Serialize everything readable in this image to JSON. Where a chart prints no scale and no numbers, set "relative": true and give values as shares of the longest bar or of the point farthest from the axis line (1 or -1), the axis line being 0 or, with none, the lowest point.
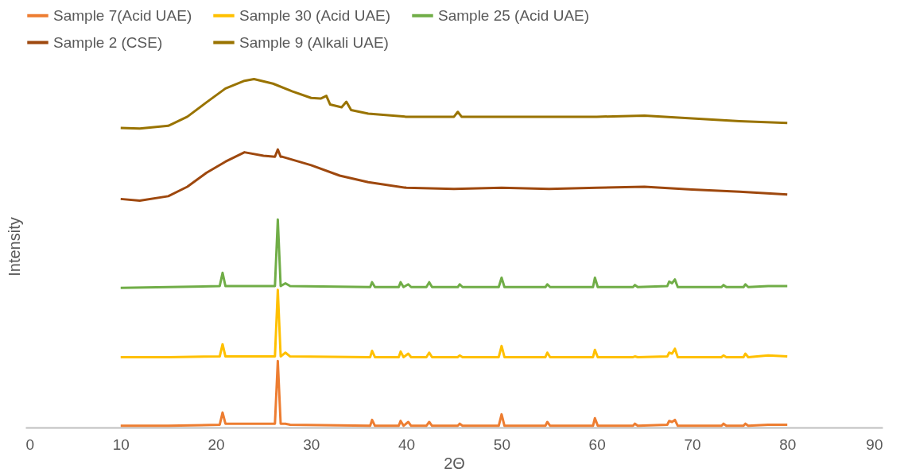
{
  "chart_data": {
    "type": "line",
    "xlabel": "2Θ",
    "ylabel": "Intensity",
    "relative": true,
    "xlim": [
      0,
      90
    ],
    "xticks": [
      0,
      10,
      20,
      30,
      40,
      50,
      60,
      70,
      80,
      90
    ],
    "grid": false,
    "legend": "top",
    "marker": "none",
    "line_style": "solid",
    "series": [
      {
        "name": "Sample 7(Acid UAE)",
        "color": "#ed7d31",
        "x": [
          10,
          15,
          20.4,
          20.7,
          21.0,
          24,
          26.2,
          26.5,
          26.8,
          27.3,
          27.8,
          36.2,
          36.4,
          36.7,
          39.2,
          39.4,
          39.7,
          40.2,
          40.5,
          42.1,
          42.4,
          42.7,
          45.4,
          45.6,
          45.9,
          49.7,
          50.0,
          50.3,
          54.6,
          54.8,
          55.1,
          59.6,
          59.8,
          60.1,
          63.8,
          64.0,
          64.3,
          67.4,
          67.6,
          67.9,
          68.2,
          68.5,
          73.1,
          73.3,
          73.6,
          75.4,
          75.6,
          75.9,
          78.0,
          80
        ],
        "values": [
          0.005,
          0.005,
          0.008,
          0.043,
          0.011,
          0.011,
          0.011,
          0.191,
          0.011,
          0.011,
          0.008,
          0.005,
          0.022,
          0.005,
          0.005,
          0.019,
          0.005,
          0.016,
          0.005,
          0.005,
          0.016,
          0.005,
          0.005,
          0.011,
          0.005,
          0.005,
          0.038,
          0.005,
          0.005,
          0.016,
          0.005,
          0.005,
          0.027,
          0.005,
          0.005,
          0.011,
          0.005,
          0.008,
          0.019,
          0.016,
          0.022,
          0.005,
          0.005,
          0.011,
          0.005,
          0.005,
          0.011,
          0.005,
          0.008,
          0.008
        ]
      },
      {
        "name": "Sample 30 (Acid UAE)",
        "color": "#ffc000",
        "x": [
          10,
          15,
          20.4,
          20.7,
          21.0,
          26.2,
          26.5,
          26.8,
          27.3,
          27.8,
          36.2,
          36.4,
          36.7,
          39.2,
          39.4,
          39.7,
          40.2,
          40.5,
          42.1,
          42.4,
          42.7,
          45.4,
          45.6,
          45.9,
          49.7,
          50.0,
          50.3,
          54.6,
          54.8,
          55.1,
          59.6,
          59.8,
          60.1,
          63.8,
          64.0,
          64.3,
          67.4,
          67.6,
          67.9,
          68.2,
          68.5,
          73.1,
          73.3,
          73.6,
          75.4,
          75.6,
          75.9,
          78.0,
          80
        ],
        "values": [
          0.202,
          0.202,
          0.204,
          0.239,
          0.204,
          0.204,
          0.395,
          0.204,
          0.215,
          0.204,
          0.202,
          0.22,
          0.202,
          0.202,
          0.218,
          0.202,
          0.212,
          0.202,
          0.202,
          0.215,
          0.202,
          0.202,
          0.207,
          0.202,
          0.202,
          0.234,
          0.202,
          0.202,
          0.215,
          0.202,
          0.202,
          0.223,
          0.202,
          0.202,
          0.204,
          0.202,
          0.204,
          0.215,
          0.212,
          0.226,
          0.202,
          0.202,
          0.207,
          0.202,
          0.202,
          0.212,
          0.202,
          0.207,
          0.204
        ]
      },
      {
        "name": "Sample 25 (Acid UAE)",
        "color": "#70ad47",
        "x": [
          10,
          15,
          20.4,
          20.7,
          21.0,
          26.2,
          26.5,
          26.8,
          27.3,
          27.8,
          36.2,
          36.4,
          36.7,
          39.2,
          39.4,
          39.7,
          40.2,
          40.5,
          42.1,
          42.4,
          42.7,
          45.4,
          45.6,
          45.9,
          49.7,
          50.0,
          50.3,
          54.6,
          54.8,
          55.1,
          59.6,
          59.8,
          60.1,
          63.8,
          64.0,
          64.3,
          67.4,
          67.6,
          67.9,
          68.2,
          68.5,
          73.1,
          73.3,
          73.6,
          75.4,
          75.6,
          75.9,
          78.0,
          80
        ],
        "values": [
          0.401,
          0.403,
          0.406,
          0.444,
          0.406,
          0.406,
          0.597,
          0.406,
          0.414,
          0.406,
          0.403,
          0.417,
          0.403,
          0.403,
          0.417,
          0.403,
          0.411,
          0.403,
          0.403,
          0.417,
          0.403,
          0.403,
          0.411,
          0.403,
          0.403,
          0.43,
          0.403,
          0.403,
          0.411,
          0.403,
          0.403,
          0.43,
          0.403,
          0.403,
          0.409,
          0.403,
          0.406,
          0.419,
          0.414,
          0.425,
          0.403,
          0.403,
          0.409,
          0.403,
          0.403,
          0.411,
          0.403,
          0.406,
          0.406
        ]
      },
      {
        "name": "Sample 2 (CSE)",
        "color": "#9e480e",
        "x": [
          10,
          12,
          15,
          17,
          19,
          21,
          23,
          25,
          26.2,
          26.5,
          26.8,
          27,
          30,
          33,
          36,
          40,
          45,
          50,
          55,
          60,
          65,
          70,
          75,
          80
        ],
        "values": [
          0.656,
          0.651,
          0.664,
          0.691,
          0.731,
          0.763,
          0.79,
          0.78,
          0.777,
          0.798,
          0.777,
          0.777,
          0.753,
          0.723,
          0.704,
          0.688,
          0.685,
          0.688,
          0.685,
          0.688,
          0.691,
          0.683,
          0.677,
          0.669
        ]
      },
      {
        "name": "Sample 9 (Alkali UAE)",
        "color": "#997300",
        "x": [
          10,
          12,
          15,
          17,
          19,
          21,
          23,
          24,
          26,
          28,
          30,
          31,
          31.6,
          32,
          33.2,
          33.7,
          34.2,
          36,
          40,
          45,
          45.4,
          45.8,
          50,
          55,
          60,
          65,
          70,
          75,
          80
        ],
        "values": [
          0.86,
          0.858,
          0.866,
          0.892,
          0.933,
          0.973,
          0.995,
          1.0,
          0.987,
          0.965,
          0.946,
          0.944,
          0.952,
          0.927,
          0.919,
          0.935,
          0.911,
          0.901,
          0.892,
          0.892,
          0.906,
          0.892,
          0.892,
          0.892,
          0.892,
          0.895,
          0.887,
          0.879,
          0.874
        ]
      }
    ]
  }
}
